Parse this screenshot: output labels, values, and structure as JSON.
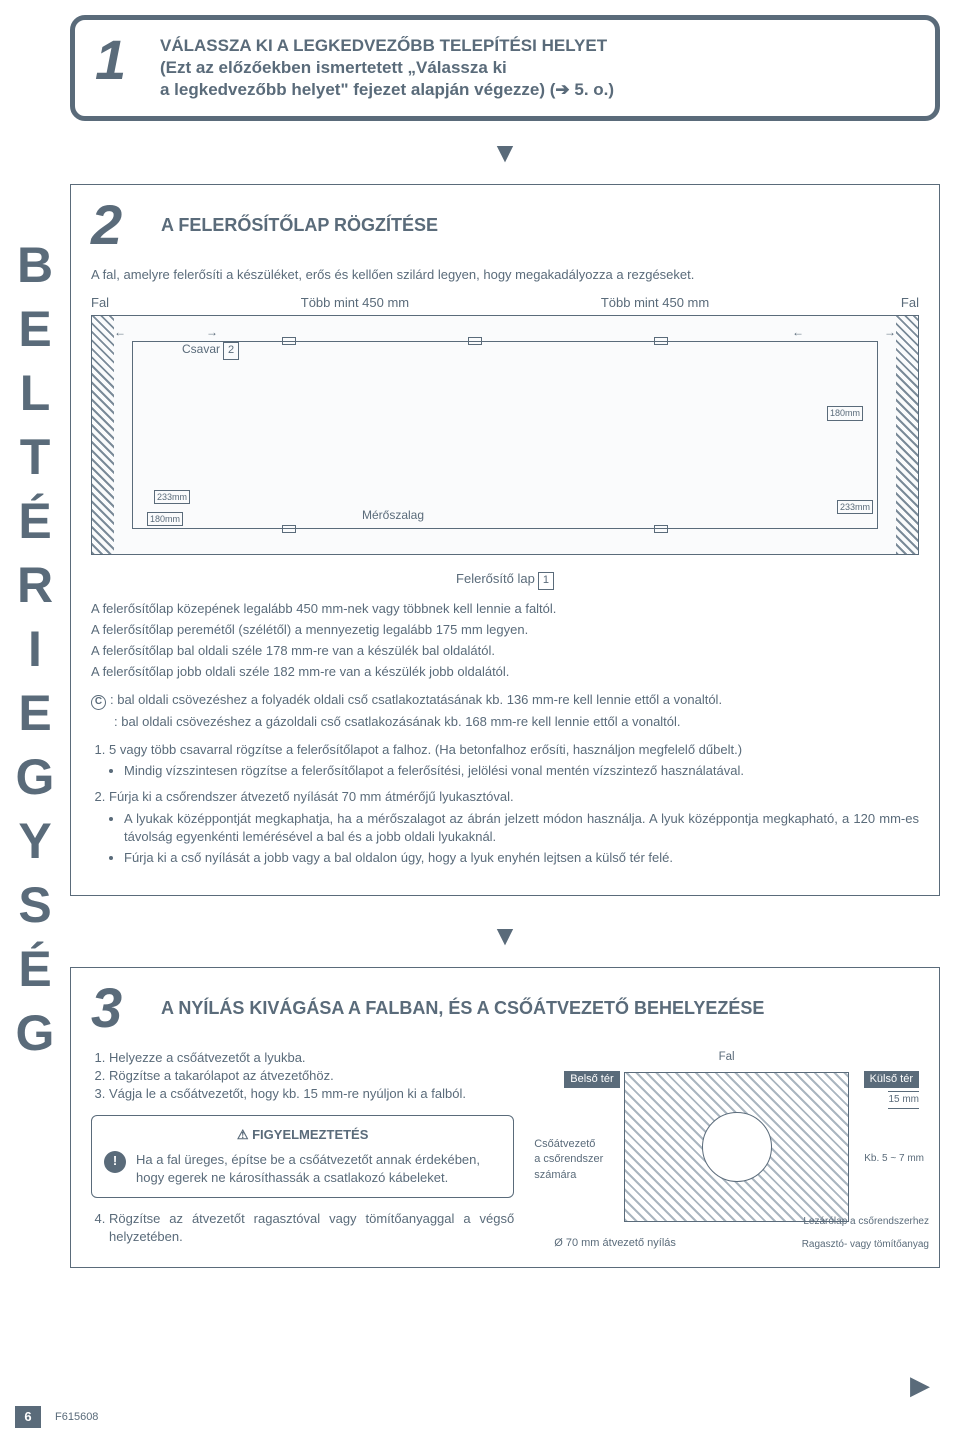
{
  "side_letters": [
    "B",
    "E",
    "L",
    "T",
    "É",
    "R",
    "I",
    "E",
    "G",
    "Y",
    "S",
    "É",
    "G"
  ],
  "step1": {
    "num": "1",
    "title": "VÁLASSZA KI A LEGKEDVEZŐBB TELEPÍTÉSI HELYET\n(Ezt az előzőekben ismertetett „Válassza ki\na legkedvezőbb helyet\" fejezet alapján végezze) (➔ 5. o.)"
  },
  "step2": {
    "num": "2",
    "title": "A FELERŐSÍTŐLAP RÖGZÍTÉSE",
    "intro": "A fal, amelyre felerősíti a készüléket, erős és kellően szilárd legyen, hogy megakadályozza a rezgéseket.",
    "labels": {
      "wall_l": "Fal",
      "dim_l": "Több mint 450 mm",
      "dim_r": "Több mint 450 mm",
      "wall_r": "Fal"
    },
    "callouts": {
      "screw": "Csavar",
      "screw_box": "2",
      "tape": "Mérőszalag",
      "mm233": "233mm",
      "mm180": "180mm",
      "mm180r": "180mm",
      "mm233r": "233mm"
    },
    "plate_label": "Felerősítő lap",
    "plate_box": "1",
    "lines": [
      "A felerősítőlap közepének legalább 450 mm-nek vagy többnek kell lennie a faltól.",
      "A felerősítőlap peremétől (szélétől) a mennyezetig legalább 175 mm legyen.",
      "A felerősítőlap bal oldali széle 178 mm-re van a készülék bal oldalától.",
      "A felerősítőlap jobb oldali széle 182 mm-re van a készülék jobb oldalától."
    ],
    "c1": ": bal oldali csövezéshez a folyadék oldali cső csatlakoztatásának kb. 136 mm-re kell lennie ettől a vonaltól.",
    "c2": ": bal oldali csövezéshez a gázoldali cső csatlakozásának kb. 168 mm-re kell lennie ettől a vonaltól.",
    "ol1": {
      "t": "5 vagy több csavarral rögzítse a felerősítőlapot a falhoz. (Ha betonfalhoz erősíti, használjon megfelelő dűbelt.)",
      "b": "Mindig vízszintesen rögzítse a felerősítőlapot a felerősítési, jelölési vonal mentén vízszintező használatával."
    },
    "ol2": {
      "t": "Fúrja ki a csőrendszer átvezető nyílását 70 mm átmérőjű lyukasztóval.",
      "b1": "A lyukak középpontját megkaphatja, ha a mérőszalagot az ábrán jelzett módon használja. A lyuk középpontja megkapható, a 120 mm-es távolság egyenkénti lemérésével a bal és a jobb oldali lyukaknál.",
      "b2": "Fúrja ki a cső nyílását a jobb vagy a bal oldalon úgy, hogy a lyuk enyhén lejtsen a külső tér felé."
    }
  },
  "step3": {
    "num": "3",
    "title": "A NYÍLÁS KIVÁGÁSA A FALBAN, ÉS A CSŐÁTVEZETŐ BEHELYEZÉSE",
    "ol": [
      "Helyezze a csőátvezetőt a lyukba.",
      "Rögzítse a takarólapot az átvezetőhöz.",
      "Vágja le a csőátvezetőt, hogy kb. 15 mm-re nyúljon ki a falból."
    ],
    "warn_title": "FIGYELMEZTETÉS",
    "warn_text": "Ha a fal üreges, építse be a csőátvezetőt annak érdekében, hogy egerek ne károsíthassák a csatlakozó kábeleket.",
    "step4": "Rögzítse az átvezetőt ragasztóval vagy tömítőanyaggal a végső helyzetében.",
    "diag": {
      "wall": "Fal",
      "inside": "Belső tér",
      "outside": "Külső tér",
      "mm15": "15 mm",
      "sleeve": "Csőátvezető\na csőrendszer\nszámára",
      "mm57": "Kb. 5 ~ 7 mm",
      "hole": "Ø 70 mm átvezető nyílás",
      "cap": "Lezárólap a csőrendszerhez",
      "glue": "Ragasztó- vagy tömítőanyag"
    }
  },
  "footer": {
    "page": "6",
    "code": "F615608"
  },
  "colors": {
    "ink": "#5a6b7a"
  }
}
